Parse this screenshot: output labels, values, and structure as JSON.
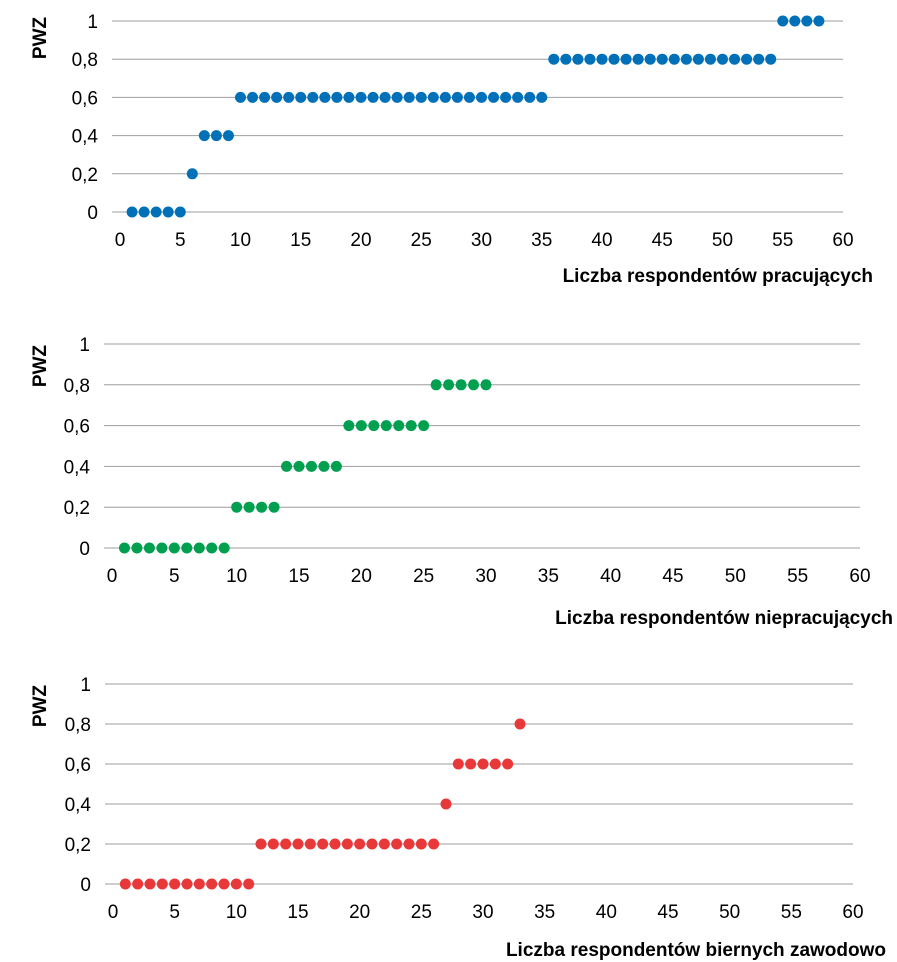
{
  "chart_data": [
    {
      "type": "scatter",
      "ylabel": "PWZ",
      "xlabel": "Liczba respondentów pracujących",
      "xlim": [
        0,
        60
      ],
      "ylim": [
        0,
        1
      ],
      "x_ticks": [
        "0",
        "5",
        "10",
        "15",
        "20",
        "25",
        "30",
        "35",
        "40",
        "45",
        "50",
        "55",
        "60"
      ],
      "y_ticks": [
        "0",
        "0,2",
        "0,4",
        "0,6",
        "0,8",
        "1"
      ],
      "grid": true,
      "color": "#0070b8",
      "series": [
        {
          "x": [
            1,
            2,
            3,
            4,
            5,
            6,
            7,
            8,
            9,
            10,
            11,
            12,
            13,
            14,
            15,
            16,
            17,
            18,
            19,
            20,
            21,
            22,
            23,
            24,
            25,
            26,
            27,
            28,
            29,
            30,
            31,
            32,
            33,
            34,
            35,
            36,
            37,
            38,
            39,
            40,
            41,
            42,
            43,
            44,
            45,
            46,
            47,
            48,
            49,
            50,
            51,
            52,
            53,
            54,
            55,
            56,
            57,
            58
          ],
          "y": [
            0,
            0,
            0,
            0,
            0,
            0.2,
            0.4,
            0.4,
            0.4,
            0.6,
            0.6,
            0.6,
            0.6,
            0.6,
            0.6,
            0.6,
            0.6,
            0.6,
            0.6,
            0.6,
            0.6,
            0.6,
            0.6,
            0.6,
            0.6,
            0.6,
            0.6,
            0.6,
            0.6,
            0.6,
            0.6,
            0.6,
            0.6,
            0.6,
            0.6,
            0.8,
            0.8,
            0.8,
            0.8,
            0.8,
            0.8,
            0.8,
            0.8,
            0.8,
            0.8,
            0.8,
            0.8,
            0.8,
            0.8,
            0.8,
            0.8,
            0.8,
            0.8,
            0.8,
            1,
            1,
            1,
            1
          ]
        }
      ]
    },
    {
      "type": "scatter",
      "ylabel": "PWZ",
      "xlabel": "Liczba respondentów niepracujących",
      "xlim": [
        0,
        60
      ],
      "ylim": [
        0,
        1
      ],
      "x_ticks": [
        "0",
        "5",
        "10",
        "15",
        "20",
        "25",
        "30",
        "35",
        "40",
        "45",
        "50",
        "55",
        "60"
      ],
      "y_ticks": [
        "0",
        "0,2",
        "0,4",
        "0,6",
        "0,8",
        "1"
      ],
      "grid": true,
      "color": "#00a050",
      "series": [
        {
          "x": [
            1,
            2,
            3,
            4,
            5,
            6,
            7,
            8,
            9,
            10,
            11,
            12,
            13,
            14,
            15,
            16,
            17,
            18,
            19,
            20,
            21,
            22,
            23,
            24,
            25,
            26,
            27,
            28,
            29,
            30
          ],
          "y": [
            0,
            0,
            0,
            0,
            0,
            0,
            0,
            0,
            0,
            0.2,
            0.2,
            0.2,
            0.2,
            0.4,
            0.4,
            0.4,
            0.4,
            0.4,
            0.6,
            0.6,
            0.6,
            0.6,
            0.6,
            0.6,
            0.6,
            0.8,
            0.8,
            0.8,
            0.8,
            0.8
          ]
        }
      ]
    },
    {
      "type": "scatter",
      "ylabel": "PWZ",
      "xlabel": "Liczba respondentów biernych zawodowo",
      "xlim": [
        0,
        60
      ],
      "ylim": [
        0,
        1
      ],
      "x_ticks": [
        "0",
        "5",
        "10",
        "15",
        "20",
        "25",
        "30",
        "35",
        "40",
        "45",
        "50",
        "55",
        "60"
      ],
      "y_ticks": [
        "0",
        "0,2",
        "0,4",
        "0,6",
        "0,8",
        "1"
      ],
      "grid": true,
      "color": "#e8383a",
      "series": [
        {
          "x": [
            1,
            2,
            3,
            4,
            5,
            6,
            7,
            8,
            9,
            10,
            11,
            12,
            13,
            14,
            15,
            16,
            17,
            18,
            19,
            20,
            21,
            22,
            23,
            24,
            25,
            26,
            27,
            28,
            29,
            30,
            31,
            32,
            33
          ],
          "y": [
            0,
            0,
            0,
            0,
            0,
            0,
            0,
            0,
            0,
            0,
            0,
            0.2,
            0.2,
            0.2,
            0.2,
            0.2,
            0.2,
            0.2,
            0.2,
            0.2,
            0.2,
            0.2,
            0.2,
            0.2,
            0.2,
            0.2,
            0.4,
            0.6,
            0.6,
            0.6,
            0.6,
            0.6,
            0.8
          ]
        }
      ]
    }
  ]
}
